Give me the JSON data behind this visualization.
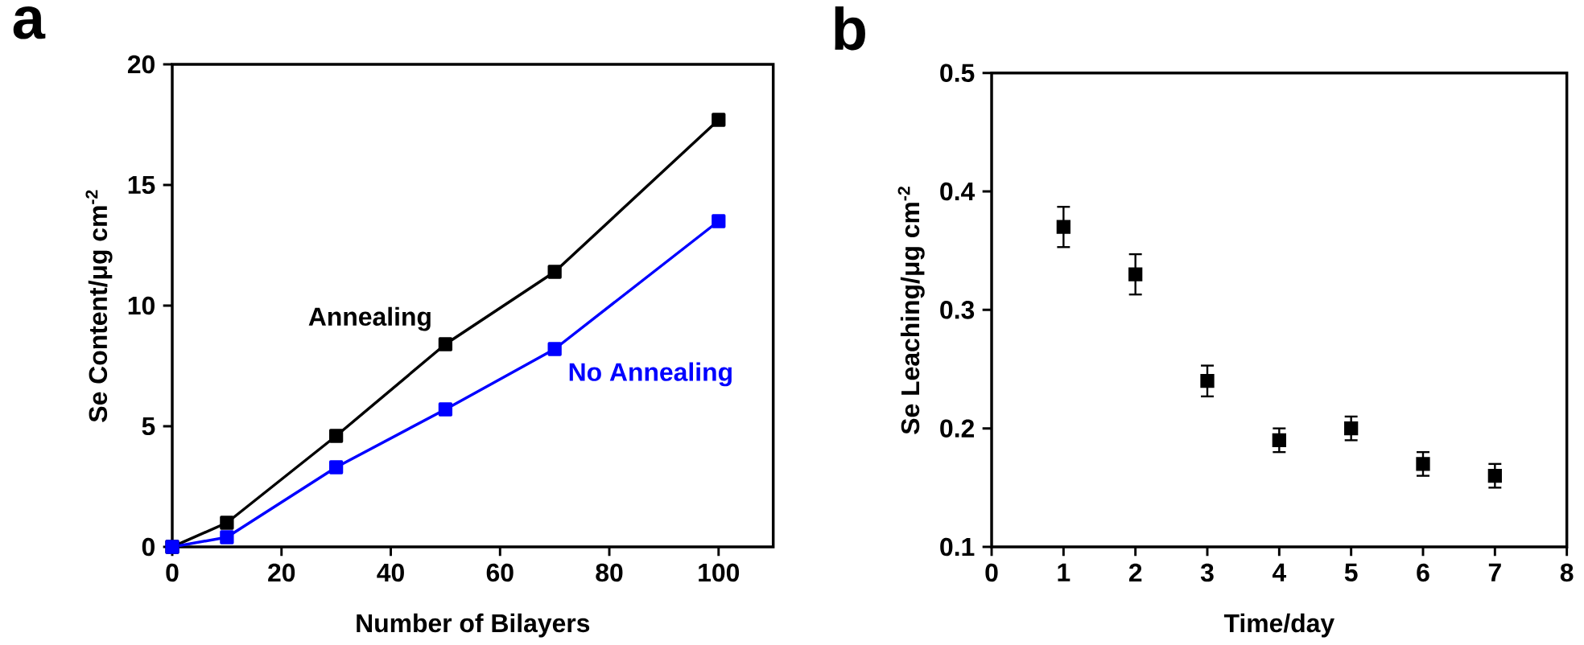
{
  "chart_data": [
    {
      "type": "line",
      "title": "a",
      "xlabel": "Number of Bilayers",
      "ylabel": "Se Content/μg cm$^{-2}$",
      "marker": "square",
      "line_style": "solid",
      "xlim": [
        0,
        110
      ],
      "xticks": [
        0,
        20,
        40,
        60,
        80,
        100
      ],
      "ylim": [
        0,
        20
      ],
      "yticks": [
        0,
        5,
        10,
        15,
        20
      ],
      "series": [
        {
          "name": "Annealing",
          "color": "#000000",
          "x": [
            0,
            10,
            30,
            50,
            70,
            100
          ],
          "values": [
            0,
            1.0,
            4.6,
            8.4,
            11.4,
            17.7
          ]
        },
        {
          "name": "No Annealing",
          "color": "#0000ff",
          "x": [
            0,
            10,
            30,
            50,
            70,
            100
          ],
          "values": [
            0,
            0.4,
            3.3,
            5.7,
            8.2,
            13.5
          ]
        }
      ]
    },
    {
      "type": "scatter",
      "title": "b",
      "xlabel": "Time/day",
      "ylabel": "Se Leaching/μg cm$^{-2}$",
      "marker": "square",
      "xlim": [
        0,
        8
      ],
      "xticks": [
        0,
        1,
        2,
        3,
        4,
        5,
        6,
        7,
        8
      ],
      "ylim": [
        0.1,
        0.5
      ],
      "yticks": [
        0.1,
        0.2,
        0.3,
        0.4,
        0.5
      ],
      "x": [
        1,
        2,
        3,
        4,
        5,
        6,
        7
      ],
      "values": [
        0.37,
        0.33,
        0.24,
        0.19,
        0.2,
        0.17,
        0.16
      ],
      "color": "#000000",
      "errors": [
        0.017,
        0.017,
        0.013,
        0.01,
        0.01,
        0.01,
        0.01
      ]
    }
  ]
}
